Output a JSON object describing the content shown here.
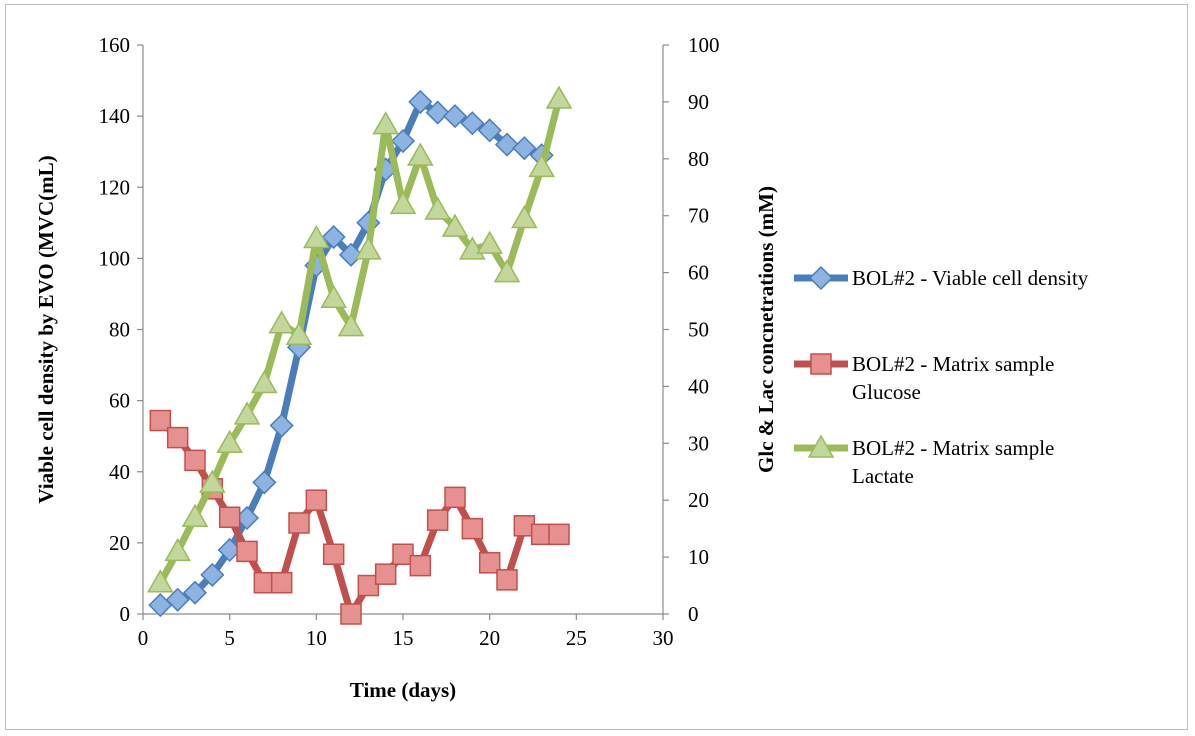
{
  "chart_data": {
    "type": "line",
    "title": "",
    "xlabel": "Time (days)",
    "ylabel_left": "Viable cell density by EVO (MVC(mL)",
    "ylabel_right": "Glc & Lac concnetrations (mM)",
    "xlim": [
      0,
      30
    ],
    "ylim_left": [
      0,
      160
    ],
    "ylim_right": [
      0,
      100
    ],
    "x_ticks": [
      "0",
      "5",
      "10",
      "15",
      "20",
      "25",
      "30"
    ],
    "y_left_ticks": [
      "0",
      "20",
      "40",
      "60",
      "80",
      "100",
      "120",
      "140",
      "160"
    ],
    "y_right_ticks": [
      "0",
      "10",
      "20",
      "30",
      "40",
      "50",
      "60",
      "70",
      "80",
      "90",
      "100"
    ],
    "grid": false,
    "legend_position": "right",
    "series": [
      {
        "name": "BOL#2 - Viable cell density",
        "axis": "left",
        "color": "#4a7ebb",
        "fill": "#8db3e2",
        "marker": "diamond",
        "x": [
          1,
          2,
          3,
          4,
          5,
          6,
          7,
          8,
          9,
          10,
          11,
          12,
          13,
          14,
          15,
          16,
          17,
          18,
          19,
          20,
          21,
          22,
          23
        ],
        "values": [
          2.5,
          4,
          6,
          11,
          18,
          27,
          37,
          53,
          75,
          98,
          106,
          101,
          110,
          125,
          133,
          144,
          141,
          140,
          138,
          136,
          132,
          131,
          129
        ]
      },
      {
        "name": "BOL#2 - Matrix sample Glucose",
        "axis": "right",
        "color": "#c0504d",
        "fill": "#e6918f",
        "marker": "square",
        "x": [
          1,
          2,
          3,
          4,
          5,
          6,
          7,
          8,
          9,
          10,
          11,
          12,
          13,
          14,
          15,
          16,
          17,
          18,
          19,
          20,
          21,
          22,
          23,
          24
        ],
        "values": [
          34,
          31,
          27,
          22,
          17,
          11,
          5.5,
          5.5,
          16,
          20,
          10.5,
          0,
          5,
          7,
          10.5,
          8.5,
          16.5,
          20.5,
          15,
          9,
          6,
          15.5,
          14,
          14
        ]
      },
      {
        "name": "BOL#2 - Matrix sample Lactate",
        "axis": "right",
        "color": "#9bbb59",
        "fill": "#c3d69b",
        "marker": "triangle",
        "x": [
          1,
          2,
          3,
          4,
          5,
          6,
          7,
          8,
          9,
          10,
          11,
          12,
          13,
          14,
          15,
          16,
          17,
          18,
          19,
          20,
          21,
          22,
          23,
          24
        ],
        "values": [
          5.5,
          11,
          17,
          23,
          30,
          35,
          40.5,
          51,
          49,
          66,
          55.5,
          50.5,
          64,
          86,
          72,
          80.5,
          71,
          68,
          64,
          65,
          60,
          69.5,
          78.5,
          90.5
        ]
      }
    ]
  }
}
